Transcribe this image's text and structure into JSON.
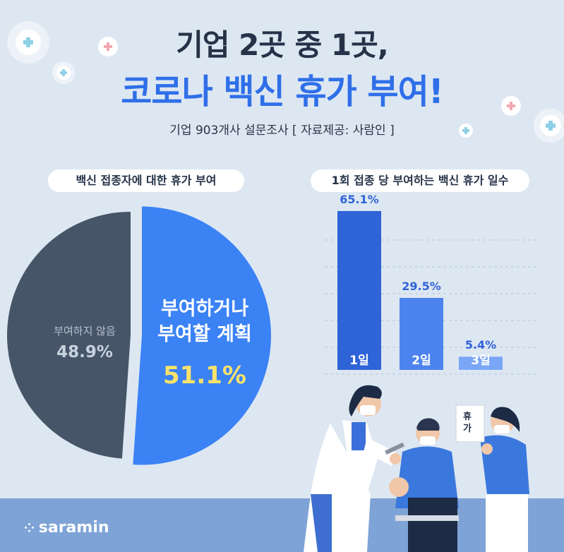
{
  "header": {
    "title_line1": "기업 2곳 중 1곳,",
    "title_line2": "코로나 백신 휴가 부여!",
    "subtitle": "기업 903개사 설문조사 [ 자료제공: 사람인 ]"
  },
  "brand": {
    "name": "saramin"
  },
  "illustration": {
    "sign_text": "휴 가"
  },
  "colors": {
    "background": "#dde7f2",
    "pie_yes": "#3b82f5",
    "pie_no": "#475569",
    "bar_1": "#2f63d8",
    "bar_2": "#4d83ee",
    "bar_3": "#7aa6f6",
    "accent_yellow": "#fbe26a",
    "floor": "#7ea3d6"
  },
  "chart_data": [
    {
      "type": "pie",
      "title": "백신 접종자에 대한 휴가 부여",
      "slices": [
        {
          "label": "부여하거나 부여할 계획",
          "value": 51.1,
          "value_label": "51.1%"
        },
        {
          "label": "부여하지 않음",
          "value": 48.9,
          "value_label": "48.9%"
        }
      ]
    },
    {
      "type": "bar",
      "title": "1회 접종 당 부여하는 백신 휴가 일수",
      "categories": [
        "1일",
        "2일",
        "3일"
      ],
      "values": [
        65.1,
        29.5,
        5.4
      ],
      "value_labels": [
        "65.1%",
        "29.5%",
        "5.4%"
      ],
      "ylim": [
        0,
        70
      ],
      "grid": true
    }
  ]
}
